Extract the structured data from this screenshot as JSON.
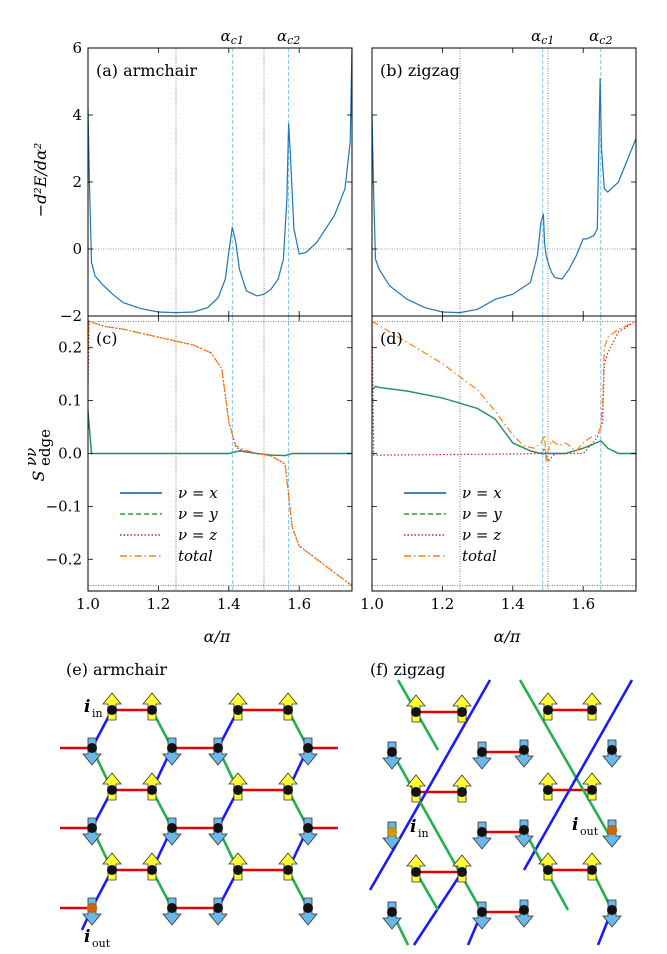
{
  "figure": {
    "panels_top": [
      {
        "label": "(a)  armchair"
      },
      {
        "label": "(b)  zigzag"
      }
    ],
    "panels_mid": [
      {
        "label": "(c)"
      },
      {
        "label": "(d)"
      }
    ],
    "ylabel_top": "−d²E/dα²",
    "ylabel_mid": "S",
    "ylabel_mid_sup": "νν",
    "ylabel_mid_sub": "edge",
    "xlabel": "α/π",
    "alpha_c1": "αc1",
    "alpha_c2": "αc2",
    "legend": [
      "ν = x",
      "ν = y",
      "ν = z",
      "total"
    ],
    "lattice_titles": [
      "(e) armchair",
      "(f) zigzag"
    ],
    "site_labels": {
      "in_a": "i",
      "in_a_sub": "in",
      "out_a": "i",
      "out_a_sub": "out",
      "in_b": "i",
      "in_b_sub": "in",
      "out_b": "i",
      "out_b_sub": "out"
    }
  },
  "colors": {
    "blue": "#1f77b4",
    "green": "#2ca02c",
    "red": "#d62728",
    "orange": "#ff7f0e",
    "vline_c": "#6fc6e8",
    "bond_x": "#e00000",
    "bond_y": "#22b14c",
    "bond_z": "#1a1aff",
    "spin_up": "#ffff33",
    "spin_down": "#6ab7ea"
  },
  "chart_data": [
    {
      "type": "line",
      "panel": "a",
      "title": "(a)  armchair",
      "xlim": [
        1.0,
        1.75
      ],
      "ylim": [
        -2,
        6
      ],
      "xticks": [
        1.0,
        1.2,
        1.4,
        1.6
      ],
      "yticks": [
        -2,
        0,
        2,
        4,
        6
      ],
      "ylabel": "−d²E/dα²",
      "grid_h": [
        0
      ],
      "grid_v_dotted": [
        1.25,
        1.5
      ],
      "alpha_c": [
        1.41,
        1.57
      ],
      "series": [
        {
          "x": [
            1.0,
            1.004,
            1.01,
            1.02,
            1.04,
            1.07,
            1.1,
            1.15,
            1.2,
            1.25,
            1.3,
            1.34,
            1.37,
            1.39,
            1.4,
            1.41,
            1.42,
            1.43,
            1.45,
            1.48,
            1.5,
            1.52,
            1.54,
            1.555,
            1.565,
            1.57,
            1.575,
            1.585,
            1.6,
            1.62,
            1.65,
            1.7,
            1.73,
            1.745,
            1.75
          ],
          "y": [
            4.2,
            2.0,
            -0.4,
            -0.8,
            -1.05,
            -1.35,
            -1.6,
            -1.78,
            -1.88,
            -1.9,
            -1.88,
            -1.75,
            -1.45,
            -0.9,
            -0.1,
            0.65,
            0.2,
            -0.6,
            -1.25,
            -1.4,
            -1.35,
            -1.2,
            -0.9,
            -0.3,
            1.5,
            3.75,
            2.8,
            0.6,
            -0.15,
            -0.1,
            0.2,
            1.0,
            1.8,
            3.2,
            6.0
          ]
        }
      ]
    },
    {
      "type": "line",
      "panel": "b",
      "title": "(b)  zigzag",
      "xlim": [
        1.0,
        1.75
      ],
      "ylim": [
        -2,
        6
      ],
      "xticks": [
        1.0,
        1.2,
        1.4,
        1.6
      ],
      "yticks": [
        -2,
        0,
        2,
        4,
        6
      ],
      "grid_h": [
        0
      ],
      "grid_v_dotted": [
        1.25,
        1.5
      ],
      "alpha_c": [
        1.485,
        1.65
      ],
      "series": [
        {
          "x": [
            1.0,
            1.005,
            1.01,
            1.02,
            1.05,
            1.1,
            1.15,
            1.2,
            1.25,
            1.3,
            1.35,
            1.4,
            1.45,
            1.47,
            1.48,
            1.487,
            1.49,
            1.495,
            1.5,
            1.51,
            1.52,
            1.54,
            1.56,
            1.58,
            1.6,
            1.61,
            1.62,
            1.63,
            1.64,
            1.648,
            1.652,
            1.66,
            1.67,
            1.7,
            1.75
          ],
          "y": [
            4.0,
            1.5,
            -0.3,
            -0.6,
            -1.1,
            -1.5,
            -1.75,
            -1.88,
            -1.9,
            -1.8,
            -1.5,
            -1.35,
            -1.0,
            -0.2,
            0.8,
            1.05,
            0.2,
            -0.2,
            -0.4,
            -0.7,
            -0.85,
            -0.9,
            -0.6,
            -0.2,
            0.3,
            0.3,
            0.35,
            0.4,
            0.6,
            5.1,
            3.0,
            1.8,
            1.7,
            2.0,
            3.3
          ]
        }
      ]
    },
    {
      "type": "line",
      "panel": "c",
      "title": "(c)",
      "xlim": [
        1.0,
        1.75
      ],
      "ylim": [
        -0.26,
        0.26
      ],
      "xticks": [
        1.0,
        1.2,
        1.4,
        1.6
      ],
      "yticks": [
        -0.2,
        -0.1,
        0.0,
        0.1,
        0.2
      ],
      "ylabel": "S νν edge",
      "xlabel": "α/π",
      "grid_h": [
        0.25,
        -0.25
      ],
      "grid_v_dotted": [
        1.25,
        1.5
      ],
      "alpha_c": [
        1.41,
        1.57
      ],
      "legend_loc": "lower-left",
      "series": [
        {
          "name": "ν = x",
          "x": [
            1.0,
            1.01,
            1.02,
            1.3,
            1.4,
            1.43,
            1.48,
            1.52,
            1.56,
            1.58,
            1.6,
            1.75
          ],
          "y": [
            0.08,
            0.0,
            0.0,
            0.0,
            0.0,
            0.005,
            0.0,
            -0.003,
            -0.004,
            0.0,
            0.0,
            0.0
          ]
        },
        {
          "name": "ν = y",
          "x": [
            1.0,
            1.01,
            1.02,
            1.3,
            1.4,
            1.43,
            1.48,
            1.52,
            1.56,
            1.58,
            1.6,
            1.75
          ],
          "y": [
            0.08,
            0.0,
            0.0,
            0.0,
            0.0,
            0.005,
            0.0,
            -0.003,
            -0.004,
            0.0,
            0.0,
            0.0
          ]
        },
        {
          "name": "ν = z",
          "x": [
            1.0,
            1.003,
            1.01,
            1.05,
            1.1,
            1.2,
            1.3,
            1.35,
            1.38,
            1.4,
            1.42,
            1.44,
            1.48,
            1.52,
            1.56,
            1.58,
            1.6,
            1.65,
            1.7,
            1.75
          ],
          "y": [
            0.13,
            0.25,
            0.248,
            0.24,
            0.235,
            0.22,
            0.205,
            0.19,
            0.16,
            0.06,
            0.012,
            0.005,
            0.0,
            -0.004,
            -0.02,
            -0.14,
            -0.175,
            -0.2,
            -0.225,
            -0.25
          ]
        },
        {
          "name": "total",
          "x": [
            1.0,
            1.003,
            1.01,
            1.05,
            1.1,
            1.2,
            1.3,
            1.35,
            1.38,
            1.4,
            1.42,
            1.44,
            1.48,
            1.52,
            1.56,
            1.58,
            1.6,
            1.65,
            1.7,
            1.75
          ],
          "y": [
            0.2,
            0.25,
            0.248,
            0.24,
            0.235,
            0.22,
            0.205,
            0.19,
            0.16,
            0.06,
            0.015,
            0.008,
            0.0,
            -0.005,
            -0.02,
            -0.14,
            -0.175,
            -0.2,
            -0.225,
            -0.25
          ]
        }
      ]
    },
    {
      "type": "line",
      "panel": "d",
      "title": "(d)",
      "xlim": [
        1.0,
        1.75
      ],
      "ylim": [
        -0.26,
        0.26
      ],
      "xticks": [
        1.0,
        1.2,
        1.4,
        1.6
      ],
      "yticks": [
        -0.2,
        -0.1,
        0.0,
        0.1,
        0.2
      ],
      "xlabel": "α/π",
      "grid_h": [
        0.25,
        -0.25
      ],
      "grid_v_dotted": [
        1.25,
        1.5
      ],
      "alpha_c": [
        1.485,
        1.65
      ],
      "legend_loc": "lower-left",
      "series": [
        {
          "name": "ν = x",
          "x": [
            1.0,
            1.01,
            1.02,
            1.1,
            1.2,
            1.3,
            1.35,
            1.4,
            1.45,
            1.48,
            1.5,
            1.55,
            1.6,
            1.63,
            1.65,
            1.67,
            1.7,
            1.75
          ],
          "y": [
            0.12,
            0.127,
            0.125,
            0.118,
            0.105,
            0.085,
            0.065,
            0.02,
            0.005,
            0.0,
            0.0,
            0.0,
            0.01,
            0.018,
            0.024,
            0.01,
            0.0,
            0.0
          ]
        },
        {
          "name": "ν = y",
          "x": [
            1.0,
            1.01,
            1.02,
            1.1,
            1.2,
            1.3,
            1.35,
            1.4,
            1.45,
            1.48,
            1.5,
            1.55,
            1.6,
            1.63,
            1.65,
            1.67,
            1.7,
            1.75
          ],
          "y": [
            0.12,
            0.127,
            0.125,
            0.118,
            0.105,
            0.085,
            0.065,
            0.02,
            0.005,
            0.0,
            0.0,
            0.0,
            0.01,
            0.018,
            0.024,
            0.01,
            0.0,
            0.0
          ]
        },
        {
          "name": "ν = z",
          "x": [
            1.0,
            1.005,
            1.02,
            1.2,
            1.4,
            1.48,
            1.49,
            1.5,
            1.52,
            1.6,
            1.64,
            1.655,
            1.66,
            1.67,
            1.7,
            1.75
          ],
          "y": [
            0.25,
            -0.003,
            -0.003,
            -0.002,
            -0.001,
            0.0,
            0.01,
            -0.015,
            0.0,
            0.0,
            0.03,
            0.06,
            0.17,
            0.19,
            0.23,
            0.25
          ]
        },
        {
          "name": "total",
          "x": [
            1.0,
            1.05,
            1.1,
            1.2,
            1.3,
            1.35,
            1.4,
            1.43,
            1.46,
            1.48,
            1.49,
            1.495,
            1.5,
            1.51,
            1.53,
            1.55,
            1.58,
            1.6,
            1.62,
            1.64,
            1.65,
            1.655,
            1.66,
            1.67,
            1.7,
            1.75
          ],
          "y": [
            0.25,
            0.23,
            0.21,
            0.17,
            0.12,
            0.08,
            0.035,
            0.015,
            0.01,
            0.02,
            0.035,
            -0.015,
            0.005,
            0.025,
            0.015,
            0.02,
            0.005,
            0.02,
            0.03,
            0.035,
            0.05,
            0.1,
            0.2,
            0.22,
            0.235,
            0.25
          ]
        }
      ]
    }
  ]
}
